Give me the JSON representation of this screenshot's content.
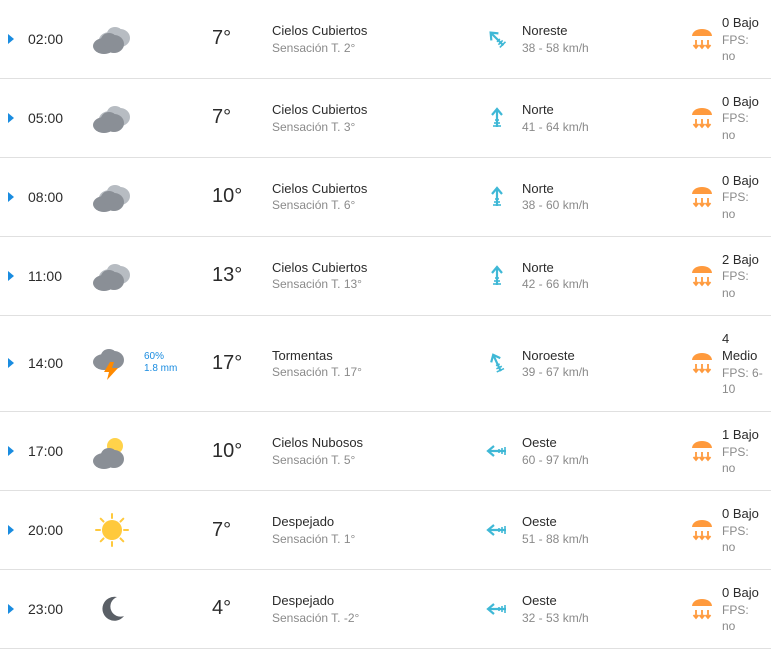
{
  "colors": {
    "accent_blue": "#1a8ce0",
    "text_primary": "#2b2b2b",
    "text_secondary": "#8a8a8a",
    "divider": "#e0e0e0",
    "sun_orange": "#ff9a3d",
    "wind_cyan": "#3fb8d6",
    "cloud_gray": "#8a8f96",
    "cloud_light": "#b7bcc2",
    "storm_flash": "#ff8a00",
    "moon_gray": "#5a5f66"
  },
  "labels": {
    "feels_prefix": "Sensación T. ",
    "fps_prefix": "FPS: "
  },
  "rows": [
    {
      "time": "02:00",
      "icon": "overcast",
      "precip_prob": "",
      "precip_amount": "",
      "temp": "7°",
      "cond": "Cielos Cubiertos",
      "feels": "2°",
      "wind_arrow_rot": 135,
      "wind_dir": "Noreste",
      "wind_speed": "38 - 58 km/h",
      "uv_value": "0 Bajo",
      "fps": "no"
    },
    {
      "time": "05:00",
      "icon": "overcast",
      "precip_prob": "",
      "precip_amount": "",
      "temp": "7°",
      "cond": "Cielos Cubiertos",
      "feels": "3°",
      "wind_arrow_rot": 180,
      "wind_dir": "Norte",
      "wind_speed": "41 - 64 km/h",
      "uv_value": "0 Bajo",
      "fps": "no"
    },
    {
      "time": "08:00",
      "icon": "overcast",
      "precip_prob": "",
      "precip_amount": "",
      "temp": "10°",
      "cond": "Cielos Cubiertos",
      "feels": "6°",
      "wind_arrow_rot": 180,
      "wind_dir": "Norte",
      "wind_speed": "38 - 60 km/h",
      "uv_value": "0 Bajo",
      "fps": "no"
    },
    {
      "time": "11:00",
      "icon": "overcast",
      "precip_prob": "",
      "precip_amount": "",
      "temp": "13°",
      "cond": "Cielos Cubiertos",
      "feels": "13°",
      "wind_arrow_rot": 180,
      "wind_dir": "Norte",
      "wind_speed": "42 - 66 km/h",
      "uv_value": "2 Bajo",
      "fps": "no"
    },
    {
      "time": "14:00",
      "icon": "storm",
      "precip_prob": "60%",
      "precip_amount": "1.8 mm",
      "temp": "17°",
      "cond": "Tormentas",
      "feels": "17°",
      "wind_arrow_rot": 155,
      "wind_dir": "Noroeste",
      "wind_speed": "39 - 67 km/h",
      "uv_value": "4 Medio",
      "fps": "6-10"
    },
    {
      "time": "17:00",
      "icon": "partly-cloudy",
      "precip_prob": "",
      "precip_amount": "",
      "temp": "10°",
      "cond": "Cielos Nubosos",
      "feels": "5°",
      "wind_arrow_rot": 90,
      "wind_dir": "Oeste",
      "wind_speed": "60 - 97 km/h",
      "uv_value": "1 Bajo",
      "fps": "no"
    },
    {
      "time": "20:00",
      "icon": "sun",
      "precip_prob": "",
      "precip_amount": "",
      "temp": "7°",
      "cond": "Despejado",
      "feels": "1°",
      "wind_arrow_rot": 90,
      "wind_dir": "Oeste",
      "wind_speed": "51 - 88 km/h",
      "uv_value": "0 Bajo",
      "fps": "no"
    },
    {
      "time": "23:00",
      "icon": "moon",
      "precip_prob": "",
      "precip_amount": "",
      "temp": "4°",
      "cond": "Despejado",
      "feels": "-2°",
      "wind_arrow_rot": 90,
      "wind_dir": "Oeste",
      "wind_speed": "32 - 53 km/h",
      "uv_value": "0 Bajo",
      "fps": "no"
    }
  ]
}
